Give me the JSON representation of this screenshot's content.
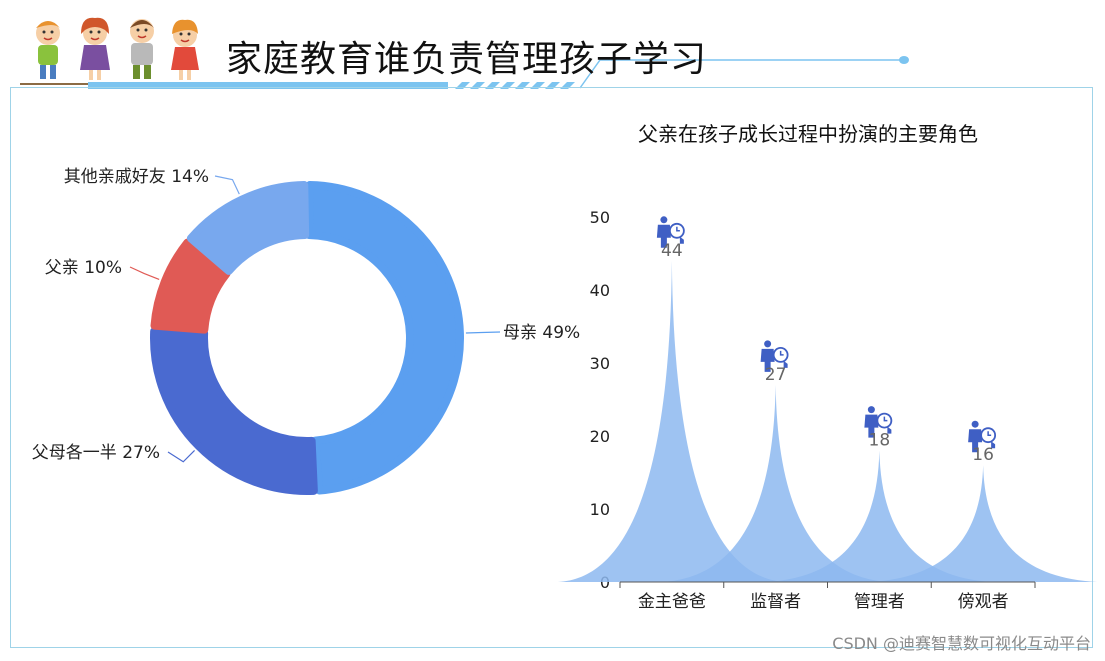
{
  "page": {
    "title": "家庭教育谁负责管理孩子学习",
    "watermark": "CSDN @迪赛智慧数可视化互动平台"
  },
  "colors": {
    "header_line": "#7cc4f0",
    "panel_border": "#9fd3e8",
    "pie": [
      "#5b9ff0",
      "#4a6ad0",
      "#e05a55",
      "#78a8ee"
    ],
    "spike_fill": "#8db8f0",
    "marker_icon": "#3f5fc4",
    "value_label": "#666666"
  },
  "chart_data": [
    {
      "type": "pie",
      "variant": "donut",
      "slices": [
        {
          "label": "母亲",
          "percent": 49,
          "display": "母亲 49%"
        },
        {
          "label": "父母各一半",
          "percent": 27,
          "display": "父母各一半 27%"
        },
        {
          "label": "父亲",
          "percent": 10,
          "display": "父亲 10%"
        },
        {
          "label": "其他亲戚好友",
          "percent": 14,
          "display": "其他亲戚好友 14%"
        }
      ]
    },
    {
      "type": "bar",
      "variant": "spike",
      "title": "父亲在孩子成长过程中扮演的主要角色",
      "categories": [
        "金主爸爸",
        "监督者",
        "管理者",
        "傍观者"
      ],
      "values": [
        44,
        27,
        18,
        16
      ],
      "ylim": [
        0,
        50
      ],
      "yticks": [
        "0",
        "10",
        "20",
        "30",
        "40",
        "50"
      ],
      "marker_icon": "person-clock-icon"
    }
  ]
}
